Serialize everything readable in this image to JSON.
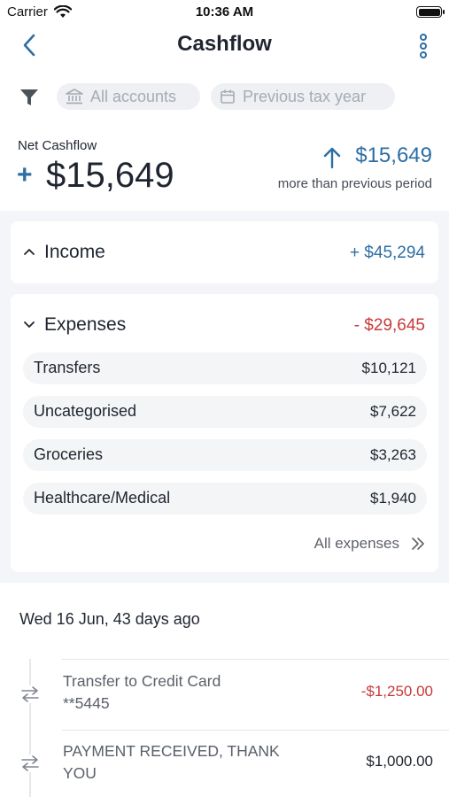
{
  "status_bar": {
    "carrier": "Carrier",
    "time": "10:36 AM"
  },
  "nav": {
    "title": "Cashflow",
    "back_icon": "chevron-left-icon",
    "more_icon": "vertical-dots-icon"
  },
  "filters": {
    "accounts_label": "All accounts",
    "period_label": "Previous tax year"
  },
  "summary": {
    "net_label": "Net Cashflow",
    "net_sign": "+",
    "net_value": "$15,649",
    "diff_value": "$15,649",
    "diff_caption": "more than previous period"
  },
  "income": {
    "title": "Income",
    "amount": "+ $45,294"
  },
  "expenses": {
    "title": "Expenses",
    "amount": "- $29,645",
    "items": [
      {
        "name": "Transfers",
        "amount": "$10,121"
      },
      {
        "name": "Uncategorised",
        "amount": "$7,622"
      },
      {
        "name": "Groceries",
        "amount": "$3,263"
      },
      {
        "name": "Healthcare/Medical",
        "amount": "$1,940"
      }
    ],
    "all_label": "All expenses"
  },
  "transactions": {
    "date_header": "Wed 16 Jun, 43 days ago",
    "items": [
      {
        "line1": "Transfer to Credit Card",
        "line2": "**5445",
        "amount": "-$1,250.00"
      },
      {
        "line1": "PAYMENT RECEIVED, THANK",
        "line2": "YOU",
        "amount": "$1,000.00"
      }
    ]
  },
  "colors": {
    "accent": "#2d6ea3",
    "negative": "#c83a3a",
    "panel": "#f3f5f8"
  }
}
